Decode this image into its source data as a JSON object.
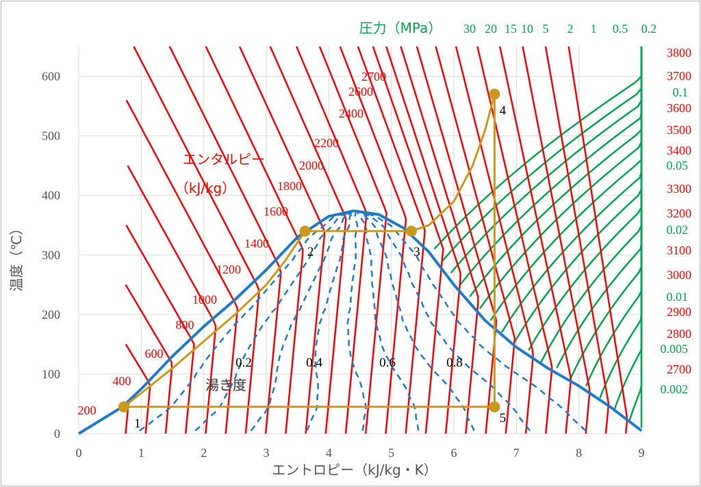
{
  "chart_data": {
    "type": "line",
    "title": "",
    "xlabel": "エントロピー（kJ/kg・K）",
    "ylabel": "温度（℃）",
    "xlim": [
      0,
      9
    ],
    "ylim": [
      0,
      650
    ],
    "x_ticks": [
      "0",
      "1",
      "2",
      "3",
      "4",
      "5",
      "6",
      "7",
      "8",
      "9"
    ],
    "y_ticks": [
      "0",
      "100",
      "200",
      "300",
      "400",
      "500",
      "600"
    ],
    "grid": true,
    "enthalpy_label": [
      "エンタルピー",
      "（kJ/kg）"
    ],
    "quality_label": "湯き度",
    "pressure_header": "圧力（MPa）",
    "pressure_top": [
      "30",
      "20",
      "15",
      "10",
      "5",
      "2",
      "1",
      "0.5",
      "0.2"
    ],
    "pressure_right": [
      "0.1",
      "0.05",
      "0.02",
      "0.01",
      "0.005",
      "0.002"
    ],
    "enthalpy_left": [
      "200",
      "400",
      "600",
      "800",
      "1000",
      "1200",
      "1400",
      "1600",
      "1800",
      "2000",
      "2200",
      "2400",
      "2600",
      "2700"
    ],
    "enthalpy_right": [
      "2700",
      "2800",
      "2900",
      "3000",
      "3100",
      "3200",
      "3300",
      "3400",
      "3500",
      "3600",
      "3700",
      "3800"
    ],
    "quality_lines": [
      "0.2",
      "0.4",
      "0.6",
      "0.8"
    ],
    "saturation_dome": {
      "name": "",
      "x": [
        0,
        0.7,
        1.0,
        1.5,
        2.0,
        2.5,
        3.0,
        3.5,
        4.0,
        4.4,
        4.8,
        5.2,
        5.6,
        6.0,
        6.5,
        7.0,
        7.5,
        8.0,
        8.5,
        9.0
      ],
      "y": [
        0,
        45,
        75,
        130,
        180,
        225,
        275,
        330,
        365,
        374,
        368,
        345,
        305,
        250,
        190,
        145,
        110,
        80,
        45,
        5
      ]
    },
    "cycle": {
      "points": [
        {
          "label": "1",
          "s": 0.72,
          "t": 45
        },
        {
          "label": "2",
          "s": 3.62,
          "t": 340
        },
        {
          "label": "3",
          "s": 5.32,
          "t": 340
        },
        {
          "label": "4",
          "s": 6.65,
          "t": 570
        },
        {
          "label": "5",
          "s": 6.65,
          "t": 45
        }
      ],
      "path_s": [
        0.72,
        1.0,
        1.5,
        2.0,
        2.5,
        3.0,
        3.3,
        3.62,
        5.32,
        5.6,
        6.0,
        6.3,
        6.5,
        6.65,
        6.65,
        0.72
      ],
      "path_t": [
        45,
        68,
        110,
        155,
        200,
        250,
        290,
        340,
        340,
        350,
        390,
        450,
        510,
        570,
        45,
        45
      ]
    },
    "colors": {
      "enthalpy": "#ff0000",
      "pressure": "#00a550",
      "saturation": "#1f7bc8",
      "cycle": "#c99a1a"
    }
  }
}
